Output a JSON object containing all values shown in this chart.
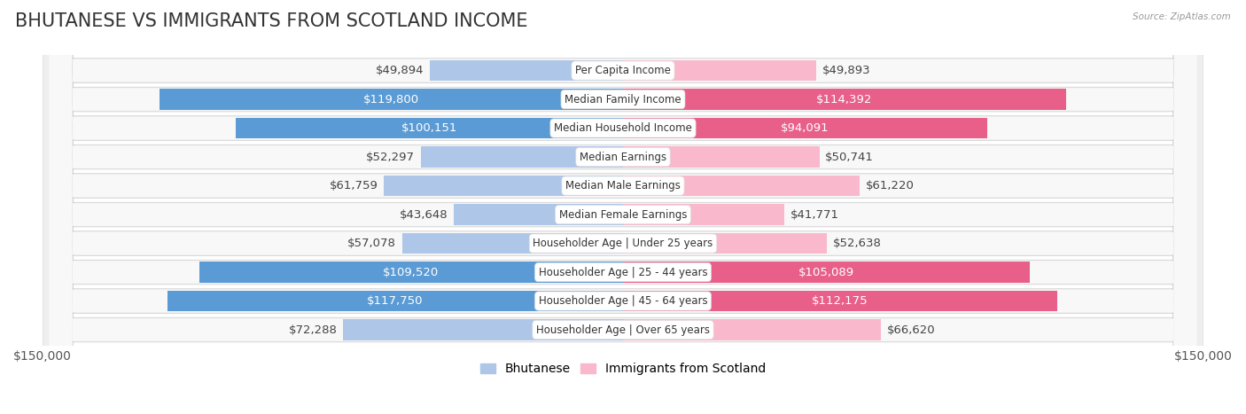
{
  "title": "BHUTANESE VS IMMIGRANTS FROM SCOTLAND INCOME",
  "source": "Source: ZipAtlas.com",
  "categories": [
    "Per Capita Income",
    "Median Family Income",
    "Median Household Income",
    "Median Earnings",
    "Median Male Earnings",
    "Median Female Earnings",
    "Householder Age | Under 25 years",
    "Householder Age | 25 - 44 years",
    "Householder Age | 45 - 64 years",
    "Householder Age | Over 65 years"
  ],
  "bhutanese": [
    49894,
    119800,
    100151,
    52297,
    61759,
    43648,
    57078,
    109520,
    117750,
    72288
  ],
  "scotland": [
    49893,
    114392,
    94091,
    50741,
    61220,
    41771,
    52638,
    105089,
    112175,
    66620
  ],
  "max_val": 150000,
  "blue_light": "#aec6e8",
  "blue_dark": "#5b9bd5",
  "pink_light": "#f9b8cb",
  "pink_dark": "#e8608a",
  "row_bg": "#e8e8e8",
  "row_border": "#d0d0d0",
  "label_threshold": 80000,
  "title_fontsize": 15,
  "axis_fontsize": 10,
  "bar_label_fontsize": 9.5,
  "category_fontsize": 8.5,
  "legend_fontsize": 10
}
